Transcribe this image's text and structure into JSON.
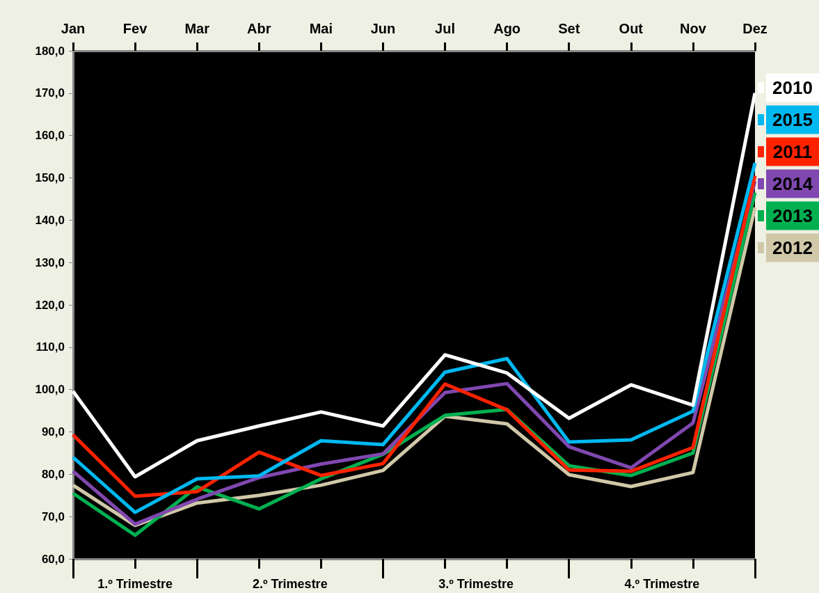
{
  "chart_data": {
    "type": "line",
    "categories": [
      "Jan",
      "Fev",
      "Mar",
      "Abr",
      "Mai",
      "Jun",
      "Jul",
      "Ago",
      "Set",
      "Out",
      "Nov",
      "Dez"
    ],
    "series": [
      {
        "name": "2010",
        "color": "#ffffff",
        "values": [
          99.6,
          79.4,
          87.9,
          91.4,
          94.7,
          91.4,
          108.2,
          103.9,
          93.2,
          101.1,
          96.3,
          170.0
        ]
      },
      {
        "name": "2015",
        "color": "#00b8f0",
        "values": [
          84.0,
          71.0,
          78.9,
          79.6,
          87.9,
          87.0,
          104.1,
          107.3,
          87.6,
          88.1,
          94.9,
          153.5
        ]
      },
      {
        "name": "2011",
        "color": "#ff2200",
        "values": [
          89.3,
          74.8,
          75.9,
          85.2,
          79.7,
          82.5,
          101.3,
          95.2,
          81.0,
          80.7,
          86.3,
          150.5
        ]
      },
      {
        "name": "2014",
        "color": "#8048b0",
        "values": [
          80.7,
          68.2,
          74.1,
          79.2,
          82.4,
          84.8,
          99.3,
          101.4,
          86.5,
          81.5,
          92.1,
          149.2
        ]
      },
      {
        "name": "2013",
        "color": "#00b050",
        "values": [
          75.5,
          65.6,
          77.0,
          71.8,
          78.9,
          84.7,
          93.9,
          95.3,
          82.0,
          79.7,
          85.0,
          146.5
        ]
      },
      {
        "name": "2012",
        "color": "#d0c8a8",
        "values": [
          77.4,
          67.9,
          73.2,
          75.0,
          77.4,
          80.9,
          93.7,
          91.9,
          79.9,
          77.1,
          80.4,
          143.0
        ]
      }
    ],
    "ylim": [
      60,
      180
    ],
    "yticks": [
      {
        "value": 60,
        "label": "60,0"
      },
      {
        "value": 70,
        "label": "70,0"
      },
      {
        "value": 80,
        "label": "80,0"
      },
      {
        "value": 90,
        "label": "90,0"
      },
      {
        "value": 100,
        "label": "100,0"
      },
      {
        "value": 110,
        "label": "110,0"
      },
      {
        "value": 120,
        "label": "120,0"
      },
      {
        "value": 130,
        "label": "130,0"
      },
      {
        "value": 140,
        "label": "140,0"
      },
      {
        "value": 150,
        "label": "150,0"
      },
      {
        "value": 160,
        "label": "160,0"
      },
      {
        "value": 170,
        "label": "170,0"
      },
      {
        "value": 180,
        "label": "180,0"
      }
    ],
    "annotations": [
      "1.º Trimestre",
      "2.º Trimestre",
      "3.º Trimestre",
      "4.º Trimestre"
    ],
    "legend": "right",
    "grid": false,
    "marker": "none",
    "line_style": "solid"
  }
}
